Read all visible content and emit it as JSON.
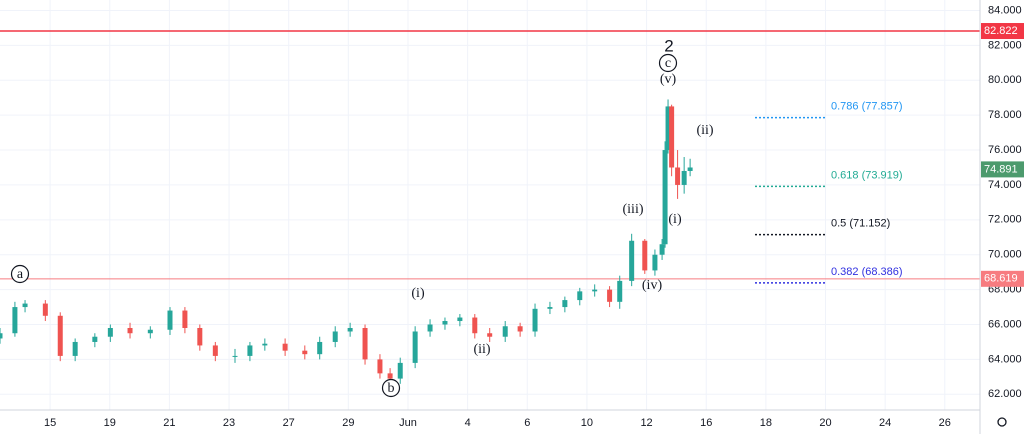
{
  "chart_data": {
    "type": "candlestick",
    "x": [
      -0.84,
      -0.59,
      -0.42,
      -0.08,
      0.17,
      0.42,
      0.75,
      1.01,
      1.34,
      1.68,
      2.01,
      2.26,
      2.51,
      2.77,
      3.1,
      3.35,
      3.6,
      3.94,
      4.27,
      4.52,
      4.78,
      5.03,
      5.28,
      5.53,
      5.7,
      5.87,
      6.12,
      6.37,
      6.62,
      6.87,
      7.12,
      7.37,
      7.63,
      7.88,
      8.13,
      8.38,
      8.63,
      8.88,
      9.13,
      9.38,
      9.55,
      9.75,
      9.97,
      10.14,
      10.26,
      10.31,
      10.36,
      10.42,
      10.52,
      10.63,
      10.73
    ],
    "open": [
      65.2,
      65.5,
      67,
      67.2,
      66.5,
      64.2,
      65,
      65.3,
      65.8,
      65.5,
      65.7,
      66.8,
      65.8,
      64.8,
      64.2,
      64.2,
      64.8,
      64.9,
      64.5,
      64.3,
      65,
      65.6,
      65.8,
      64,
      63.2,
      62.9,
      63.8,
      65.6,
      66,
      66.2,
      66.4,
      65.5,
      65.3,
      65.9,
      65.6,
      66.9,
      67,
      67.4,
      67.9,
      68,
      67.3,
      68.5,
      70.8,
      69.1,
      70,
      70.6,
      76,
      78.5,
      75,
      74,
      74.8
    ],
    "high": [
      65.8,
      67.3,
      67.4,
      67.4,
      66.7,
      65.2,
      65.5,
      66,
      66.1,
      65.9,
      67,
      67,
      66,
      65,
      64.6,
      65,
      65.2,
      65.2,
      64.8,
      65.3,
      65.9,
      66.1,
      66,
      64.3,
      63.5,
      64.1,
      65.9,
      66.3,
      66.4,
      66.6,
      66.6,
      65.8,
      66.2,
      66.1,
      67.2,
      67.3,
      67.6,
      68.1,
      68.3,
      68.2,
      68.8,
      71.2,
      70.9,
      70.3,
      70.9,
      76.5,
      78.9,
      78.6,
      76,
      75.6,
      75.5
    ],
    "low": [
      64.9,
      65.3,
      66.7,
      66.2,
      63.9,
      63.9,
      64.7,
      65,
      65.2,
      65.2,
      65.4,
      65.5,
      64.5,
      63.9,
      63.8,
      63.9,
      64.5,
      64.2,
      64,
      64,
      64.7,
      65.3,
      63.7,
      62.9,
      62.7,
      62.6,
      63.5,
      65.3,
      65.7,
      65.9,
      65.2,
      65,
      65,
      65.3,
      65.3,
      66.6,
      66.7,
      67.1,
      67.6,
      67,
      66.9,
      68.2,
      68.9,
      68.8,
      69.7,
      70.4,
      75.8,
      74.5,
      73.2,
      73.5,
      74.5
    ],
    "close": [
      65.5,
      67,
      67.2,
      66.5,
      64.2,
      65,
      65.3,
      65.8,
      65.5,
      65.7,
      66.8,
      65.8,
      64.8,
      64.2,
      64.2,
      64.8,
      64.9,
      64.5,
      64.3,
      65,
      65.6,
      65.8,
      64,
      63.2,
      62.9,
      63.8,
      65.6,
      66,
      66.2,
      66.4,
      65.5,
      65.3,
      65.9,
      65.6,
      66.9,
      67,
      67.4,
      67.9,
      68,
      67.3,
      68.5,
      70.8,
      69.1,
      70,
      70.6,
      76,
      78.5,
      75,
      74,
      74.8,
      75
    ],
    "up_color": "#26a69a",
    "down_color": "#ef5350",
    "xlim": [
      -0.84,
      15.59
    ],
    "xticks": [
      {
        "value": 0,
        "label": "15"
      },
      {
        "value": 1,
        "label": "19"
      },
      {
        "value": 2,
        "label": "21"
      },
      {
        "value": 3,
        "label": "23"
      },
      {
        "value": 4,
        "label": "27"
      },
      {
        "value": 5,
        "label": "29"
      },
      {
        "value": 6,
        "label": "Jun"
      },
      {
        "value": 7,
        "label": "4"
      },
      {
        "value": 8,
        "label": "6"
      },
      {
        "value": 9,
        "label": "10"
      },
      {
        "value": 10,
        "label": "12"
      },
      {
        "value": 11,
        "label": "16"
      },
      {
        "value": 12,
        "label": "18"
      },
      {
        "value": 13,
        "label": "20"
      },
      {
        "value": 14,
        "label": "24"
      },
      {
        "value": 15,
        "label": "26"
      }
    ],
    "ylim": [
      61.1,
      84.6
    ],
    "yticks": [
      {
        "value": 62,
        "label": "62.000"
      },
      {
        "value": 64,
        "label": "64.000"
      },
      {
        "value": 66,
        "label": "66.000"
      },
      {
        "value": 68,
        "label": "68.000"
      },
      {
        "value": 70,
        "label": "70.000"
      },
      {
        "value": 72,
        "label": "72.000"
      },
      {
        "value": 74,
        "label": "74.000"
      },
      {
        "value": 76,
        "label": "76.000"
      },
      {
        "value": 78,
        "label": "78.000"
      },
      {
        "value": 80,
        "label": "80.000"
      },
      {
        "value": 82,
        "label": "82.000"
      },
      {
        "value": 84,
        "label": "84.000"
      }
    ],
    "grid": true,
    "price_lines": [
      {
        "value": 82.822,
        "label": "82.822",
        "color": "#f23645"
      },
      {
        "value": 68.619,
        "label": "68.619",
        "color": "#f77c80"
      }
    ],
    "last_price": {
      "value": 74.891,
      "label": "74.891",
      "color": "#4c9a6d"
    },
    "fib_levels": [
      {
        "ratio": 0.786,
        "price": 77.857,
        "label": "0.786 (77.857)",
        "color": "#2196f3"
      },
      {
        "ratio": 0.618,
        "price": 73.919,
        "label": "0.618 (73.919)",
        "color": "#22ab94"
      },
      {
        "ratio": 0.5,
        "price": 71.152,
        "label": "0.5 (71.152)",
        "color": "#131722"
      },
      {
        "ratio": 0.382,
        "price": 68.386,
        "label": "0.382 (68.386)",
        "color": "#3030e0"
      }
    ],
    "annotations": [
      {
        "text": "a",
        "circled": true
      },
      {
        "text": "b",
        "circled": true
      },
      {
        "text": "c",
        "circled": true
      },
      {
        "text": "2",
        "circled": false
      },
      {
        "text": "(v)",
        "circled": false
      },
      {
        "text": "(i)",
        "circled": false
      },
      {
        "text": "(ii)",
        "circled": false
      },
      {
        "text": "(iii)",
        "circled": false
      },
      {
        "text": "(iv)",
        "circled": false
      },
      {
        "text": "(i)",
        "circled": false
      },
      {
        "text": "(ii)",
        "circled": false
      }
    ]
  }
}
